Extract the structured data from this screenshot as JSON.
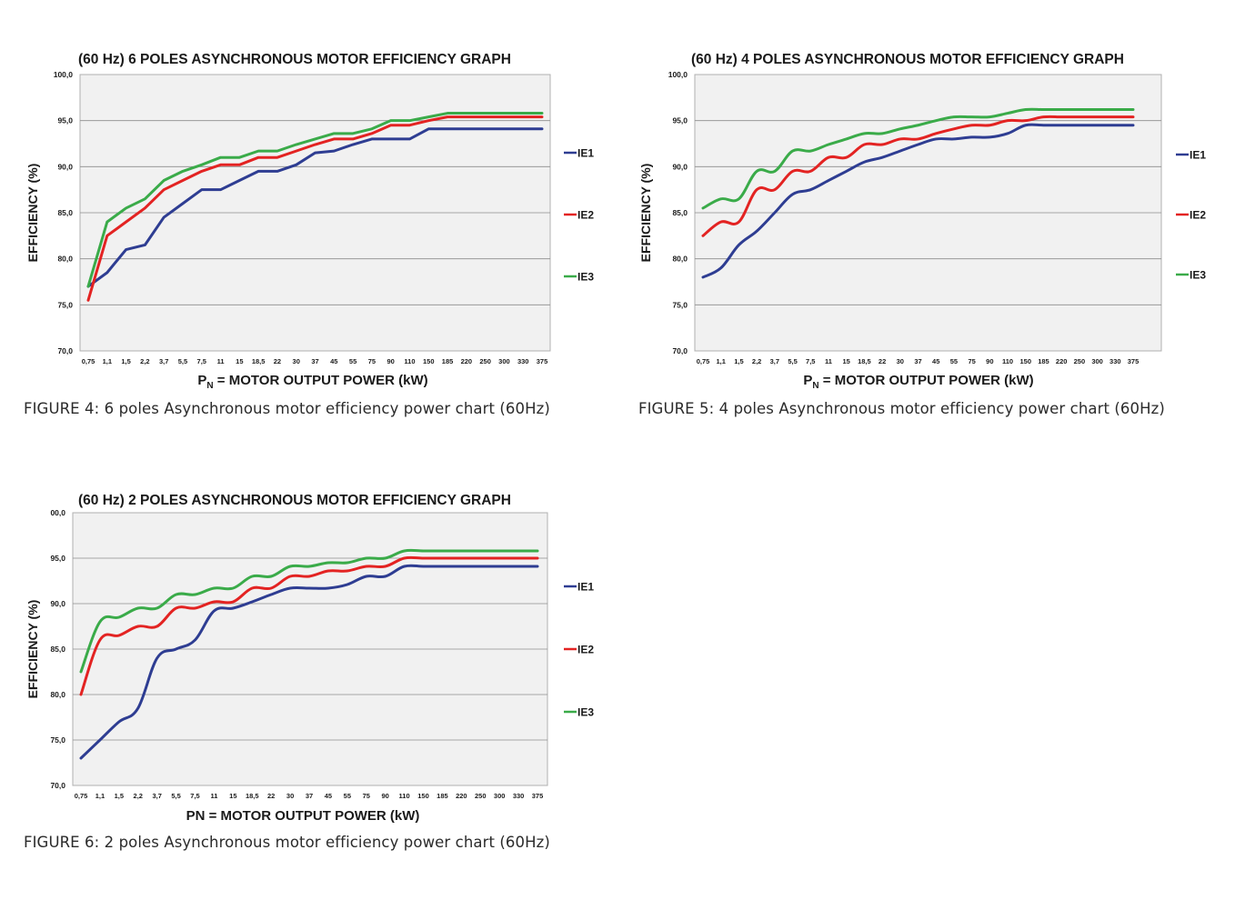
{
  "colors": {
    "IE1": "#2e3d92",
    "IE2": "#e32322",
    "IE3": "#3aab49",
    "plot_bg": "#f1f1f1",
    "grid": "#8c8c8c"
  },
  "chart_data": [
    {
      "type": "line",
      "title": "(60 Hz)  6 POLES ASYNCHRONOUS MOTOR EFFICIENCY GRAPH",
      "ylabel": "EFFICIENCY (%)",
      "xlabel_main": "P",
      "xlabel_sub": "N",
      "xlabel_rest": " = MOTOR OUTPUT POWER (kW)",
      "caption": "FIGURE 4: 6 poles Asynchronous motor efficiency power chart (60Hz)",
      "ylim": [
        70,
        100
      ],
      "ytick_labels": [
        "70,0",
        "75,0",
        "80,0",
        "85,0",
        "90,0",
        "95,0",
        "100,0"
      ],
      "categories": [
        "0,75",
        "1,1",
        "1,5",
        "2,2",
        "3,7",
        "5,5",
        "7,5",
        "11",
        "15",
        "18,5",
        "22",
        "30",
        "37",
        "45",
        "55",
        "75",
        "90",
        "110",
        "150",
        "185",
        "220",
        "250",
        "300",
        "330",
        "375"
      ],
      "smooth": false,
      "legend": "right",
      "series": [
        {
          "name": "IE1",
          "color": "#2e3d92",
          "values": [
            77.0,
            78.5,
            81.0,
            81.5,
            84.5,
            86.0,
            87.5,
            87.5,
            88.5,
            89.5,
            89.5,
            90.2,
            91.5,
            91.7,
            92.4,
            93.0,
            93.0,
            93.0,
            94.1,
            94.1,
            94.1,
            94.1,
            94.1,
            94.1,
            94.1
          ]
        },
        {
          "name": "IE2",
          "color": "#e32322",
          "values": [
            75.5,
            82.5,
            84.0,
            85.5,
            87.5,
            88.5,
            89.5,
            90.2,
            90.2,
            91.0,
            91.0,
            91.7,
            92.4,
            93.0,
            93.0,
            93.6,
            94.5,
            94.5,
            95.0,
            95.4,
            95.4,
            95.4,
            95.4,
            95.4,
            95.4
          ]
        },
        {
          "name": "IE3",
          "color": "#3aab49",
          "values": [
            77.0,
            84.0,
            85.5,
            86.5,
            88.5,
            89.5,
            90.2,
            91.0,
            91.0,
            91.7,
            91.7,
            92.4,
            93.0,
            93.6,
            93.6,
            94.1,
            95.0,
            95.0,
            95.4,
            95.8,
            95.8,
            95.8,
            95.8,
            95.8,
            95.8
          ]
        }
      ]
    },
    {
      "type": "line",
      "title": "(60 Hz) 4 POLES ASYNCHRONOUS MOTOR EFFICIENCY GRAPH",
      "ylabel": "EFFICIENCY (%)",
      "xlabel_main": "P",
      "xlabel_sub": "N",
      "xlabel_rest": " = MOTOR OUTPUT POWER (kW)",
      "caption": "FIGURE 5: 4 poles Asynchronous motor efficiency power chart (60Hz)",
      "ylim": [
        70,
        100
      ],
      "ytick_labels": [
        "70,0",
        "75,0",
        "80,0",
        "85,0",
        "90,0",
        "95,0",
        "100,0"
      ],
      "categories": [
        "0,75",
        "1,1",
        "1,5",
        "2,2",
        "3,7",
        "5,5",
        "7,5",
        "11",
        "15",
        "18,5",
        "22",
        "30",
        "37",
        "45",
        "55",
        "75",
        "90",
        "110",
        "150",
        "185",
        "220",
        "250",
        "300",
        "330",
        "375"
      ],
      "smooth": true,
      "legend": "right",
      "series": [
        {
          "name": "IE1",
          "color": "#2e3d92",
          "values": [
            78.0,
            79.0,
            81.5,
            83.0,
            85.0,
            87.0,
            87.5,
            88.5,
            89.5,
            90.5,
            91.0,
            91.7,
            92.4,
            93.0,
            93.0,
            93.2,
            93.2,
            93.6,
            94.5,
            94.5,
            94.5,
            94.5,
            94.5,
            94.5,
            94.5
          ]
        },
        {
          "name": "IE2",
          "color": "#e32322",
          "values": [
            82.5,
            84.0,
            84.0,
            87.5,
            87.5,
            89.5,
            89.5,
            91.0,
            91.0,
            92.4,
            92.4,
            93.0,
            93.0,
            93.6,
            94.1,
            94.5,
            94.5,
            95.0,
            95.0,
            95.4,
            95.4,
            95.4,
            95.4,
            95.4,
            95.4
          ]
        },
        {
          "name": "IE3",
          "color": "#3aab49",
          "values": [
            85.5,
            86.5,
            86.5,
            89.5,
            89.5,
            91.7,
            91.7,
            92.4,
            93.0,
            93.6,
            93.6,
            94.1,
            94.5,
            95.0,
            95.4,
            95.4,
            95.4,
            95.8,
            96.2,
            96.2,
            96.2,
            96.2,
            96.2,
            96.2,
            96.2
          ]
        }
      ]
    },
    {
      "type": "line",
      "title": "(60 Hz) 2 POLES ASYNCHRONOUS MOTOR EFFICIENCY GRAPH",
      "ylabel": "EFFICIENCY (%)",
      "xlabel_main": "PN",
      "xlabel_sub": "",
      "xlabel_rest": " = MOTOR OUTPUT POWER (kW)",
      "caption": "FIGURE 6: 2 poles Asynchronous motor efficiency power chart (60Hz)",
      "ylim": [
        70,
        100
      ],
      "ytick_labels": [
        "70,0",
        "75,0",
        "80,0",
        "85,0",
        "90,0",
        "95,0",
        "00,0"
      ],
      "categories": [
        "0,75",
        "1,1",
        "1,5",
        "2,2",
        "3,7",
        "5,5",
        "7,5",
        "11",
        "15",
        "18,5",
        "22",
        "30",
        "37",
        "45",
        "55",
        "75",
        "90",
        "110",
        "150",
        "185",
        "220",
        "250",
        "300",
        "330",
        "375"
      ],
      "smooth": true,
      "legend": "right",
      "series": [
        {
          "name": "IE1",
          "color": "#2e3d92",
          "values": [
            73.0,
            75.0,
            77.0,
            78.5,
            84.0,
            85.0,
            86.0,
            89.2,
            89.5,
            90.2,
            91.0,
            91.7,
            91.7,
            91.7,
            92.1,
            93.0,
            93.0,
            94.1,
            94.1,
            94.1,
            94.1,
            94.1,
            94.1,
            94.1,
            94.1
          ]
        },
        {
          "name": "IE2",
          "color": "#e32322",
          "values": [
            80.0,
            86.0,
            86.5,
            87.5,
            87.5,
            89.5,
            89.5,
            90.2,
            90.2,
            91.7,
            91.7,
            93.0,
            93.0,
            93.6,
            93.6,
            94.1,
            94.1,
            95.0,
            95.0,
            95.0,
            95.0,
            95.0,
            95.0,
            95.0,
            95.0
          ]
        },
        {
          "name": "IE3",
          "color": "#3aab49",
          "values": [
            82.5,
            88.0,
            88.5,
            89.5,
            89.5,
            91.0,
            91.0,
            91.7,
            91.7,
            93.0,
            93.0,
            94.1,
            94.1,
            94.5,
            94.5,
            95.0,
            95.0,
            95.8,
            95.8,
            95.8,
            95.8,
            95.8,
            95.8,
            95.8,
            95.8
          ]
        }
      ]
    }
  ]
}
